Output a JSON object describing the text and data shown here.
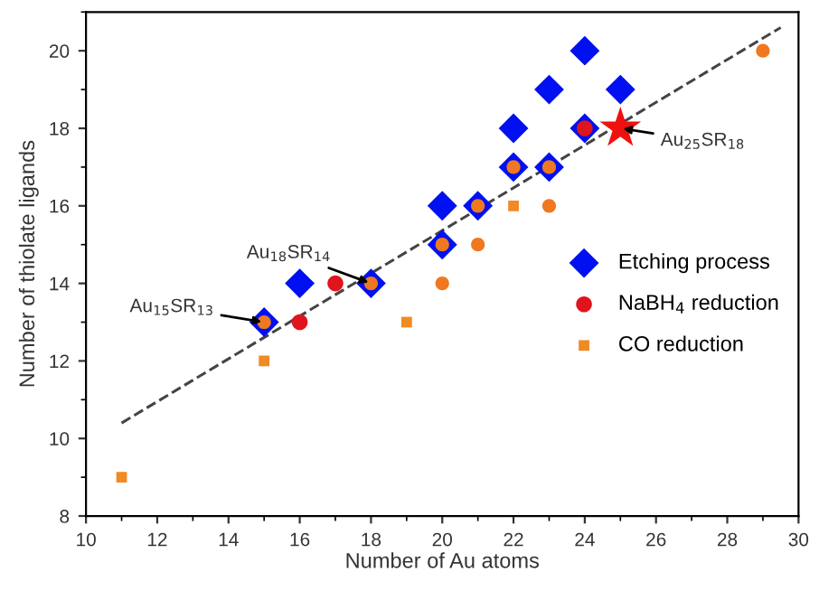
{
  "chart_data": {
    "type": "scatter",
    "xlabel": "Number of Au atoms",
    "ylabel": "Number of thiolate ligands",
    "xlim": [
      10,
      30
    ],
    "xticks": [
      10,
      12,
      14,
      16,
      18,
      20,
      22,
      24,
      26,
      28,
      30
    ],
    "ylim": [
      8,
      21
    ],
    "yticks": [
      8,
      10,
      12,
      14,
      16,
      18,
      20
    ],
    "grid": false,
    "legend": "right",
    "series": [
      {
        "type": "line",
        "line_style": "dashed",
        "marker": "none",
        "color": "#444444",
        "x": [
          11,
          29.5
        ],
        "values": [
          10.4,
          20.6
        ]
      },
      {
        "name": "Etching process",
        "marker": "diamond",
        "color": "#0010f0",
        "x": [
          15,
          16,
          18,
          20,
          20,
          21,
          22,
          22,
          23,
          23,
          24,
          24,
          25
        ],
        "values": [
          13,
          14,
          14,
          15,
          16,
          16,
          17,
          18,
          17,
          19,
          20,
          18,
          19
        ]
      },
      {
        "name": "NaBH$_{4}$ reduction",
        "marker": "circle",
        "color": "#e0141c",
        "x": [
          16,
          17,
          24
        ],
        "values": [
          13,
          14,
          18
        ]
      },
      {
        "name": "CO reduction",
        "marker": "square",
        "color": "#f08a24",
        "x": [
          11,
          15,
          19,
          22
        ],
        "values": [
          9,
          12,
          13,
          16
        ]
      },
      {
        "marker": "circle",
        "color": "#f07820",
        "x": [
          15,
          18,
          20,
          20,
          21,
          21,
          22,
          23,
          23,
          29
        ],
        "values": [
          13,
          14,
          14,
          15,
          15,
          16,
          17,
          16,
          17,
          20
        ]
      },
      {
        "marker": "star",
        "color": "#f01010",
        "x": [
          25
        ],
        "values": [
          18
        ]
      }
    ],
    "annotations": [
      {
        "text": "Au$_{15}$SR$_{13}$",
        "x": 15,
        "y": 13
      },
      {
        "text": "Au$_{18}$SR$_{14}$",
        "x": 18,
        "y": 14
      },
      {
        "text": "Au$_{25}$SR$_{18}$",
        "x": 25,
        "y": 18
      }
    ]
  }
}
